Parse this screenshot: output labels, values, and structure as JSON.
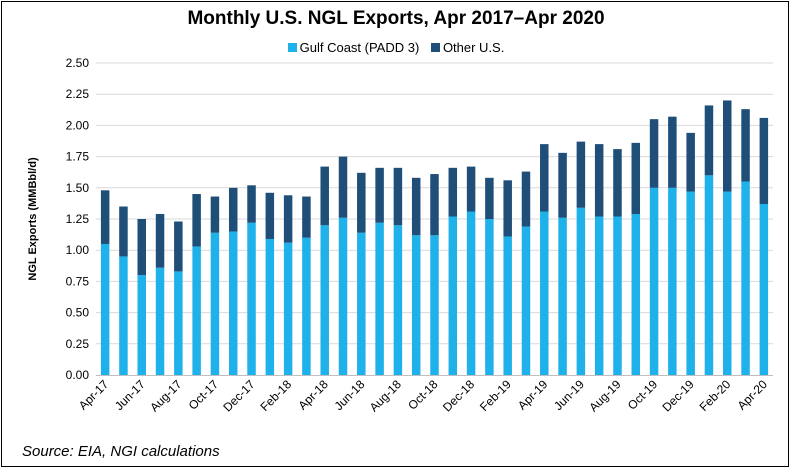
{
  "chart_data": {
    "type": "bar",
    "stacked": true,
    "title": "Monthly U.S. NGL Exports, Apr 2017–Apr 2020",
    "xlabel": "",
    "ylabel": "NGL Exports (MMBbl/d)",
    "ylim": [
      0,
      2.5
    ],
    "yticks": [
      "0.00",
      "0.25",
      "0.50",
      "0.75",
      "1.00",
      "1.25",
      "1.50",
      "1.75",
      "2.00",
      "2.25",
      "2.50"
    ],
    "legend_position": "top",
    "grid": "horizontal",
    "categories": [
      "Apr-17",
      "May-17",
      "Jun-17",
      "Jul-17",
      "Aug-17",
      "Sep-17",
      "Oct-17",
      "Nov-17",
      "Dec-17",
      "Jan-18",
      "Feb-18",
      "Mar-18",
      "Apr-18",
      "May-18",
      "Jun-18",
      "Jul-18",
      "Aug-18",
      "Sep-18",
      "Oct-18",
      "Nov-18",
      "Dec-18",
      "Jan-19",
      "Feb-19",
      "Mar-19",
      "Apr-19",
      "May-19",
      "Jun-19",
      "Jul-19",
      "Aug-19",
      "Sep-19",
      "Oct-19",
      "Nov-19",
      "Dec-19",
      "Jan-20",
      "Feb-20",
      "Mar-20",
      "Apr-20"
    ],
    "tick_labels": [
      "Apr-17",
      "Jun-17",
      "Aug-17",
      "Oct-17",
      "Dec-17",
      "Feb-18",
      "Apr-18",
      "Jun-18",
      "Aug-18",
      "Oct-18",
      "Dec-18",
      "Feb-19",
      "Apr-19",
      "Jun-19",
      "Aug-19",
      "Oct-19",
      "Dec-19",
      "Feb-20",
      "Apr-20"
    ],
    "series": [
      {
        "name": "Gulf Coast (PADD 3)",
        "color": "#1fb2ea",
        "values": [
          1.05,
          0.95,
          0.8,
          0.86,
          0.83,
          1.03,
          1.14,
          1.15,
          1.22,
          1.09,
          1.06,
          1.1,
          1.2,
          1.26,
          1.14,
          1.22,
          1.2,
          1.12,
          1.12,
          1.27,
          1.31,
          1.25,
          1.11,
          1.19,
          1.31,
          1.26,
          1.34,
          1.27,
          1.27,
          1.29,
          1.5,
          1.5,
          1.47,
          1.6,
          1.47,
          1.55,
          1.37
        ]
      },
      {
        "name": "Other U.S.",
        "color": "#1f4e79",
        "values": [
          0.43,
          0.4,
          0.45,
          0.43,
          0.4,
          0.42,
          0.29,
          0.35,
          0.3,
          0.37,
          0.38,
          0.33,
          0.47,
          0.49,
          0.48,
          0.44,
          0.46,
          0.46,
          0.49,
          0.39,
          0.36,
          0.33,
          0.45,
          0.44,
          0.54,
          0.52,
          0.53,
          0.58,
          0.54,
          0.57,
          0.55,
          0.57,
          0.47,
          0.56,
          0.73,
          0.58,
          0.69
        ]
      }
    ]
  },
  "source": "Source: EIA, NGI calculations"
}
